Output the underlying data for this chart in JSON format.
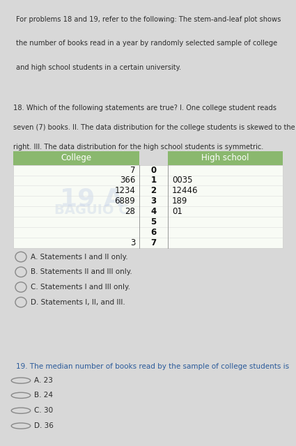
{
  "intro_text_lines": [
    "For problems 18 and 19, refer to the following: The stem-and-leaf plot shows",
    "the number of books read in a year by randomly selected sample of college",
    "and high school students in a certain university."
  ],
  "q18_text_lines": [
    "18. Which of the following statements are true? I. One college student reads",
    "seven (7) books. II. The data distribution for the college students is skewed to the",
    "right. III. The data distribution for the high school students is symmetric."
  ],
  "q19_text": "19. The median number of books read by the sample of college students is",
  "header_color": "#8ab86e",
  "stems": [
    0,
    1,
    2,
    3,
    4,
    5,
    6,
    7
  ],
  "college_leaves": [
    "7",
    "366",
    "1234",
    "6889",
    "28",
    "",
    "",
    "3"
  ],
  "highschool_leaves": [
    "",
    "0035",
    "12446",
    "189",
    "01",
    "",
    "",
    ""
  ],
  "q18_choices": [
    "A. Statements I and II only.",
    "B. Statements II and III only.",
    "C. Statements I and III only.",
    "D. Statements I, II, and III."
  ],
  "q19_choices": [
    "A. 23",
    "B. 24",
    "C. 30",
    "D. 36"
  ],
  "body_text_color": "#2c2c2c",
  "bg_outer": "#d8d8d8",
  "bg_white": "#ffffff",
  "bg_section2": "#f0f4eb",
  "circle_color": "#888888",
  "watermark1": "19 A",
  "watermark2": "BAGUIO C"
}
